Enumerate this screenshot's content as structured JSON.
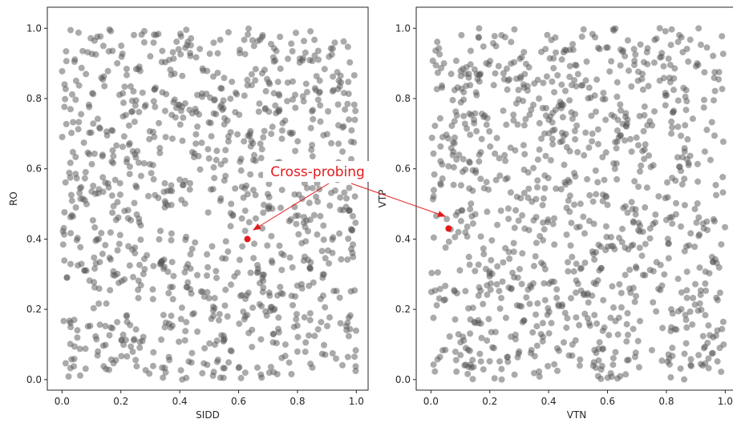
{
  "colors": {
    "point": "#555555",
    "highlight": "#e31a1c",
    "annotation": "#e31a1c",
    "axis": "#262626"
  },
  "annotation": {
    "text": "Cross-probing"
  },
  "chart_data": [
    {
      "type": "scatter",
      "id": "left-plot",
      "xlabel": "SIDD",
      "ylabel": "RO",
      "xlim": [
        -0.05,
        1.04
      ],
      "ylim": [
        -0.03,
        1.06
      ],
      "xticks": [
        "0.0",
        "0.2",
        "0.4",
        "0.6",
        "0.8",
        "1.0"
      ],
      "yticks": [
        "0.0",
        "0.2",
        "0.4",
        "0.6",
        "0.8",
        "1.0"
      ],
      "highlight": {
        "x": 0.63,
        "y": 0.4
      },
      "points": {
        "count": 1000,
        "distribution": "uniform",
        "seed": 17
      }
    },
    {
      "type": "scatter",
      "id": "right-plot",
      "xlabel": "VTN",
      "ylabel": "VTP",
      "xlim": [
        -0.05,
        1.04
      ],
      "ylim": [
        -0.03,
        1.06
      ],
      "xticks": [
        "0.0",
        "0.2",
        "0.4",
        "0.6",
        "0.8",
        "1.0"
      ],
      "yticks": [
        "0.0",
        "0.2",
        "0.4",
        "0.6",
        "0.8",
        "1.0"
      ],
      "highlight": {
        "x": 0.06,
        "y": 0.43
      },
      "points": {
        "count": 1000,
        "distribution": "uniform",
        "seed": 91
      }
    }
  ]
}
